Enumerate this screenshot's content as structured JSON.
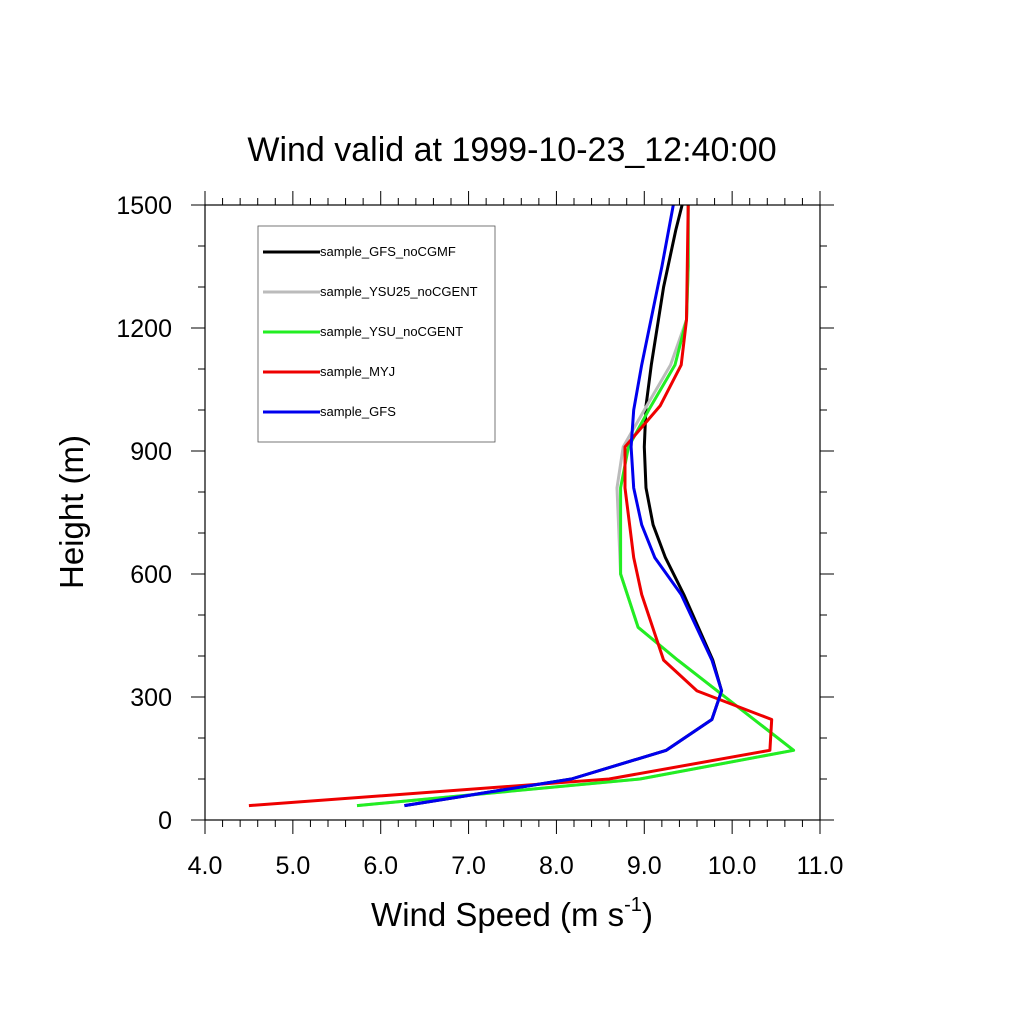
{
  "chart_data": {
    "type": "line",
    "title": "Wind valid at 1999-10-23_12:40:00",
    "xlabel": "Wind Speed (m s",
    "xlabel_sup": "-1",
    "xlabel_end": ")",
    "ylabel": "Height (m)",
    "xlim": [
      4.0,
      11.0
    ],
    "ylim": [
      0,
      1500
    ],
    "x_ticks": [
      "4.0",
      "5.0",
      "6.0",
      "7.0",
      "8.0",
      "9.0",
      "10.0",
      "11.0"
    ],
    "y_ticks": [
      "0",
      "300",
      "600",
      "900",
      "1200",
      "1500"
    ],
    "legend_position": "top-left",
    "series": [
      {
        "name": "sample_GFS_noCGMF",
        "color": "#000000",
        "x": [
          6.27,
          8.17,
          9.25,
          9.77,
          9.88,
          9.78,
          9.45,
          9.24,
          9.1,
          9.02,
          9.0,
          9.02,
          9.08,
          9.22,
          9.36,
          9.43
        ],
        "y": [
          35,
          100,
          170,
          245,
          315,
          390,
          550,
          640,
          720,
          810,
          910,
          1010,
          1110,
          1300,
          1440,
          1500
        ]
      },
      {
        "name": "sample_YSU25_noCGENT",
        "color": "#bbbbbb",
        "x": [
          5.73,
          8.95,
          10.7,
          9.38,
          8.93,
          8.73,
          8.69,
          8.76,
          9.0,
          9.3,
          9.48,
          9.5,
          9.5
        ],
        "y": [
          35,
          100,
          170,
          390,
          470,
          600,
          810,
          910,
          1000,
          1110,
          1220,
          1350,
          1500
        ]
      },
      {
        "name": "sample_YSU_noCGENT",
        "color": "#22ee22",
        "x": [
          5.73,
          8.95,
          10.7,
          9.38,
          8.93,
          8.73,
          8.73,
          8.82,
          9.05,
          9.35,
          9.48,
          9.5,
          9.5
        ],
        "y": [
          35,
          100,
          170,
          390,
          470,
          600,
          810,
          910,
          1000,
          1110,
          1220,
          1350,
          1500
        ]
      },
      {
        "name": "sample_MYJ",
        "color": "#ee0000",
        "x": [
          4.5,
          8.6,
          10.43,
          10.45,
          9.6,
          9.22,
          8.97,
          8.88,
          8.78,
          8.78,
          9.18,
          9.42,
          9.48,
          9.5
        ],
        "y": [
          35,
          100,
          170,
          245,
          315,
          390,
          550,
          640,
          810,
          910,
          1010,
          1110,
          1220,
          1500
        ]
      },
      {
        "name": "sample_GFS",
        "color": "#0000ee",
        "x": [
          6.27,
          8.17,
          9.25,
          9.77,
          9.88,
          9.77,
          9.42,
          9.12,
          8.97,
          8.88,
          8.85,
          8.88,
          8.97,
          9.2,
          9.33
        ],
        "y": [
          35,
          100,
          170,
          245,
          315,
          390,
          550,
          640,
          720,
          810,
          910,
          1000,
          1110,
          1350,
          1500
        ]
      }
    ]
  }
}
